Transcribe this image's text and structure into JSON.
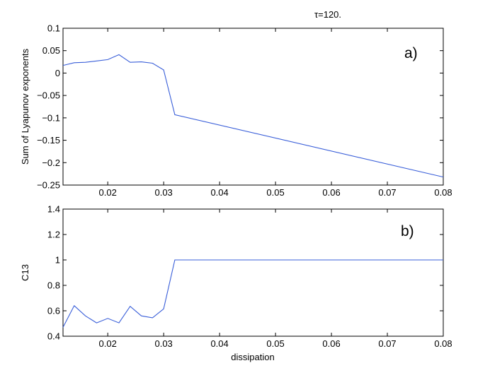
{
  "figure": {
    "title": "τ=120."
  },
  "chart_data": [
    {
      "type": "line",
      "panel_label": "a)",
      "title": "",
      "xlabel": "",
      "ylabel": "Sum of Lyapunov exponents",
      "xlim": [
        0.012,
        0.08
      ],
      "ylim": [
        -0.25,
        0.1
      ],
      "xticks": [
        0.02,
        0.03,
        0.04,
        0.05,
        0.06,
        0.07,
        0.08
      ],
      "xtick_labels": [
        "0.02",
        "0.03",
        "0.04",
        "0.05",
        "0.06",
        "0.07",
        "0.08"
      ],
      "yticks": [
        0.1,
        0.05,
        0,
        -0.05,
        -0.1,
        -0.15,
        -0.2,
        -0.25
      ],
      "ytick_labels": [
        "0.1",
        "0.05",
        "0",
        "−0.05",
        "−0.1",
        "−0.15",
        "−0.2",
        "−0.25"
      ],
      "grid": false,
      "color": "#3a5fd9",
      "series": [
        {
          "x": [
            0.012,
            0.014,
            0.016,
            0.018,
            0.02,
            0.022,
            0.024,
            0.026,
            0.028,
            0.03,
            0.032,
            0.08
          ],
          "y": [
            0.017,
            0.023,
            0.024,
            0.027,
            0.03,
            0.041,
            0.024,
            0.025,
            0.022,
            0.007,
            -0.093,
            -0.232
          ]
        }
      ]
    },
    {
      "type": "line",
      "panel_label": "b)",
      "title": "",
      "xlabel": "dissipation",
      "ylabel": "C13",
      "xlim": [
        0.012,
        0.08
      ],
      "ylim": [
        0.4,
        1.4
      ],
      "xticks": [
        0.02,
        0.03,
        0.04,
        0.05,
        0.06,
        0.07,
        0.08
      ],
      "xtick_labels": [
        "0.02",
        "0.03",
        "0.04",
        "0.05",
        "0.06",
        "0.07",
        "0.08"
      ],
      "yticks": [
        1.4,
        1.2,
        1,
        0.8,
        0.6,
        0.4
      ],
      "ytick_labels": [
        "1.4",
        "1.2",
        "1",
        "0.8",
        "0.6",
        "0.4"
      ],
      "grid": false,
      "color": "#3a5fd9",
      "series": [
        {
          "x": [
            0.012,
            0.014,
            0.016,
            0.018,
            0.02,
            0.022,
            0.024,
            0.026,
            0.028,
            0.03,
            0.032,
            0.08
          ],
          "y": [
            0.47,
            0.64,
            0.56,
            0.505,
            0.54,
            0.505,
            0.635,
            0.56,
            0.545,
            0.615,
            1.0,
            1.0
          ]
        }
      ]
    }
  ]
}
